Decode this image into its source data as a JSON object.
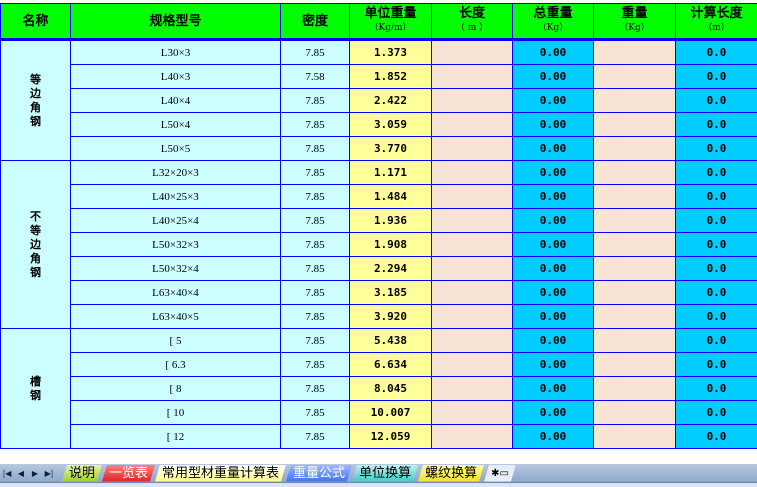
{
  "headers": [
    {
      "label": "名称",
      "unit": ""
    },
    {
      "label": "规格型号",
      "unit": ""
    },
    {
      "label": "密度",
      "unit": ""
    },
    {
      "label": "单位重量",
      "unit": "（Kg/m）"
    },
    {
      "label": "长度",
      "unit": "（ m ）"
    },
    {
      "label": "总重量",
      "unit": "（Kg）"
    },
    {
      "label": "重量",
      "unit": "（Kg）"
    },
    {
      "label": "计算长度",
      "unit": "（m）"
    }
  ],
  "groups": [
    {
      "name": "等边角钢",
      "rows": [
        {
          "spec": "L30×3",
          "density": "7.85",
          "unit_weight": "1.373",
          "length": "",
          "total_weight": "0.00",
          "weight": "",
          "calc_length": "0.0"
        },
        {
          "spec": "L40×3",
          "density": "7.58",
          "unit_weight": "1.852",
          "length": "",
          "total_weight": "0.00",
          "weight": "",
          "calc_length": "0.0"
        },
        {
          "spec": "L40×4",
          "density": "7.85",
          "unit_weight": "2.422",
          "length": "",
          "total_weight": "0.00",
          "weight": "",
          "calc_length": "0.0"
        },
        {
          "spec": "L50×4",
          "density": "7.85",
          "unit_weight": "3.059",
          "length": "",
          "total_weight": "0.00",
          "weight": "",
          "calc_length": "0.0"
        },
        {
          "spec": "L50×5",
          "density": "7.85",
          "unit_weight": "3.770",
          "length": "",
          "total_weight": "0.00",
          "weight": "",
          "calc_length": "0.0"
        }
      ]
    },
    {
      "name": "不等边角钢",
      "rows": [
        {
          "spec": "L32×20×3",
          "density": "7.85",
          "unit_weight": "1.171",
          "length": "",
          "total_weight": "0.00",
          "weight": "",
          "calc_length": "0.0"
        },
        {
          "spec": "L40×25×3",
          "density": "7.85",
          "unit_weight": "1.484",
          "length": "",
          "total_weight": "0.00",
          "weight": "",
          "calc_length": "0.0"
        },
        {
          "spec": "L40×25×4",
          "density": "7.85",
          "unit_weight": "1.936",
          "length": "",
          "total_weight": "0.00",
          "weight": "",
          "calc_length": "0.0"
        },
        {
          "spec": "L50×32×3",
          "density": "7.85",
          "unit_weight": "1.908",
          "length": "",
          "total_weight": "0.00",
          "weight": "",
          "calc_length": "0.0"
        },
        {
          "spec": "L50×32×4",
          "density": "7.85",
          "unit_weight": "2.294",
          "length": "",
          "total_weight": "0.00",
          "weight": "",
          "calc_length": "0.0"
        },
        {
          "spec": "L63×40×4",
          "density": "7.85",
          "unit_weight": "3.185",
          "length": "",
          "total_weight": "0.00",
          "weight": "",
          "calc_length": "0.0"
        },
        {
          "spec": "L63×40×5",
          "density": "7.85",
          "unit_weight": "3.920",
          "length": "",
          "total_weight": "0.00",
          "weight": "",
          "calc_length": "0.0"
        }
      ]
    },
    {
      "name": "槽钢",
      "rows": [
        {
          "spec": "[ 5",
          "density": "7.85",
          "unit_weight": "5.438",
          "length": "",
          "total_weight": "0.00",
          "weight": "",
          "calc_length": "0.0"
        },
        {
          "spec": "[ 6.3",
          "density": "7.85",
          "unit_weight": "6.634",
          "length": "",
          "total_weight": "0.00",
          "weight": "",
          "calc_length": "0.0"
        },
        {
          "spec": "[ 8",
          "density": "7.85",
          "unit_weight": "8.045",
          "length": "",
          "total_weight": "0.00",
          "weight": "",
          "calc_length": "0.0"
        },
        {
          "spec": "[ 10",
          "density": "7.85",
          "unit_weight": "10.007",
          "length": "",
          "total_weight": "0.00",
          "weight": "",
          "calc_length": "0.0"
        },
        {
          "spec": "[ 12",
          "density": "7.85",
          "unit_weight": "12.059",
          "length": "",
          "total_weight": "0.00",
          "weight": "",
          "calc_length": "0.0"
        }
      ]
    }
  ],
  "sheet_tabs": [
    {
      "label": "说明",
      "bg": "linear-gradient(#e8f5a0,#9ccc30)",
      "color": "#000"
    },
    {
      "label": "一览表",
      "bg": "linear-gradient(#ff8080,#e02020)",
      "color": "#fff"
    },
    {
      "label": "常用型材重量计算表",
      "bg": "linear-gradient(#ffffff,#ffff80)",
      "color": "#000",
      "active": true
    },
    {
      "label": "重量公式",
      "bg": "linear-gradient(#a0b8ff,#4070f0)",
      "color": "#fff"
    },
    {
      "label": "单位换算",
      "bg": "linear-gradient(#c0f0f0,#40c8c8)",
      "color": "#000"
    },
    {
      "label": "螺纹换算",
      "bg": "linear-gradient(#ffffa0,#f0e020)",
      "color": "#000"
    }
  ],
  "nav_icons": [
    "first-sheet-icon",
    "prev-sheet-icon",
    "next-sheet-icon",
    "last-sheet-icon"
  ]
}
